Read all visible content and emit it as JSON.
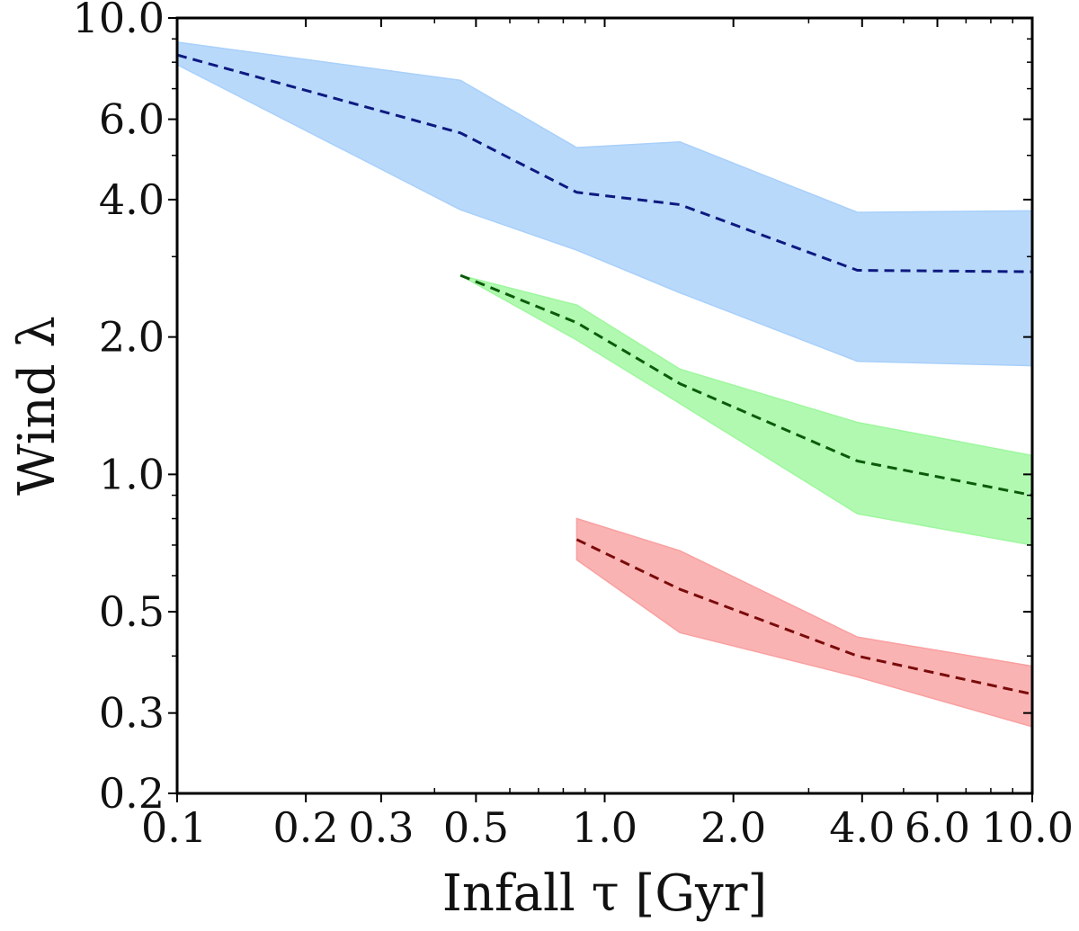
{
  "chart_data": {
    "type": "area",
    "xlabel": "Infall τ [Gyr]",
    "ylabel": "Wind λ",
    "xscale": "log",
    "yscale": "log",
    "xlim": [
      0.1,
      10.0
    ],
    "ylim": [
      0.2,
      10.0
    ],
    "xticks": [
      {
        "value": 0.1,
        "label": "0.1"
      },
      {
        "value": 0.2,
        "label": "0.2"
      },
      {
        "value": 0.3,
        "label": "0.3"
      },
      {
        "value": 0.5,
        "label": "0.5"
      },
      {
        "value": 1.0,
        "label": "1.0"
      },
      {
        "value": 2.0,
        "label": "2.0"
      },
      {
        "value": 4.0,
        "label": "4.0"
      },
      {
        "value": 6.0,
        "label": "6.0"
      },
      {
        "value": 10.0,
        "label": "10.0"
      }
    ],
    "yticks": [
      {
        "value": 0.2,
        "label": "0.2"
      },
      {
        "value": 0.3,
        "label": "0.3"
      },
      {
        "value": 0.5,
        "label": "0.5"
      },
      {
        "value": 1.0,
        "label": "1.0"
      },
      {
        "value": 2.0,
        "label": "2.0"
      },
      {
        "value": 4.0,
        "label": "4.0"
      },
      {
        "value": 6.0,
        "label": "6.0"
      },
      {
        "value": 10.0,
        "label": "10.0"
      }
    ],
    "series": [
      {
        "name": "blue",
        "line_color": "#0d1a80",
        "fill_color": "#a8d0fa",
        "x": [
          0.1,
          0.46,
          0.86,
          1.5,
          3.9,
          10.0
        ],
        "median": [
          8.3,
          5.6,
          4.15,
          3.9,
          2.8,
          2.78
        ],
        "upper": [
          8.85,
          7.3,
          5.2,
          5.35,
          3.75,
          3.78
        ],
        "lower": [
          7.9,
          3.8,
          3.1,
          2.5,
          1.77,
          1.73
        ]
      },
      {
        "name": "green",
        "line_color": "#0b5b0b",
        "fill_color": "#9ef79e",
        "x": [
          0.46,
          0.86,
          1.5,
          3.9,
          10.0
        ],
        "median": [
          2.73,
          2.15,
          1.58,
          1.07,
          0.9
        ],
        "upper": [
          2.73,
          2.35,
          1.7,
          1.3,
          1.1
        ],
        "lower": [
          2.73,
          1.97,
          1.43,
          0.82,
          0.7
        ]
      },
      {
        "name": "red",
        "line_color": "#7a0b0b",
        "fill_color": "#f9a0a0",
        "x": [
          0.86,
          1.5,
          3.9,
          10.0
        ],
        "median": [
          0.72,
          0.56,
          0.4,
          0.33
        ],
        "upper": [
          0.8,
          0.68,
          0.44,
          0.38
        ],
        "lower": [
          0.65,
          0.45,
          0.36,
          0.28
        ]
      }
    ]
  }
}
